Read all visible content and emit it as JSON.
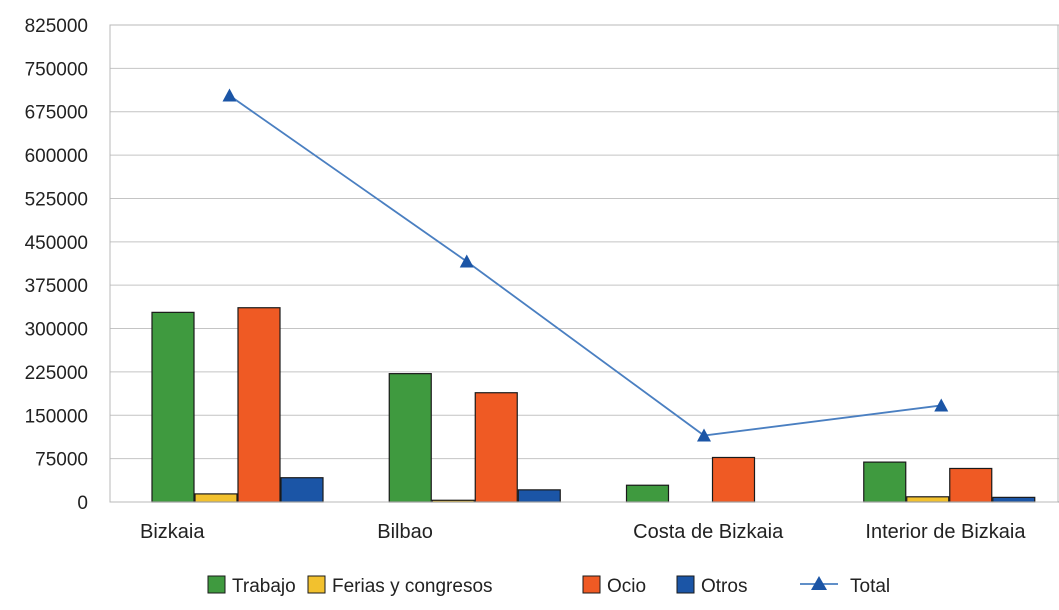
{
  "chart_data": {
    "type": "bar",
    "title": "",
    "xlabel": "",
    "ylabel": "",
    "ylim": [
      0,
      825000
    ],
    "yticks": [
      0,
      75000,
      150000,
      225000,
      300000,
      375000,
      450000,
      525000,
      600000,
      675000,
      750000,
      825000
    ],
    "ytick_labels": [
      "0",
      "75000",
      "150000",
      "225000",
      "300000",
      "375000",
      "450000",
      "525000",
      "600000",
      "675000",
      "750000",
      "825000"
    ],
    "categories": [
      "Bizkaia",
      "Bilbao",
      "Costa de Bizkaia",
      "Interior de Bizkaia"
    ],
    "grid": "horizontal",
    "legend_position": "bottom",
    "series": [
      {
        "name": "Trabajo",
        "type": "bar",
        "color": "#3f9a3f",
        "values": [
          328000,
          222000,
          29000,
          69000
        ]
      },
      {
        "name": "Ferias y congresos",
        "type": "bar",
        "color": "#f2c12e",
        "values": [
          14000,
          3000,
          0,
          9000
        ]
      },
      {
        "name": "Ocio",
        "type": "bar",
        "color": "#ef5a24",
        "values": [
          336000,
          189000,
          77000,
          58000
        ]
      },
      {
        "name": "Otros",
        "type": "bar",
        "color": "#1b55a6",
        "values": [
          42000,
          21000,
          0,
          8000
        ]
      },
      {
        "name": "Total",
        "type": "line",
        "color": "#4a7fc1",
        "marker": "triangle",
        "values": [
          703000,
          416000,
          115000,
          167000
        ]
      }
    ]
  }
}
